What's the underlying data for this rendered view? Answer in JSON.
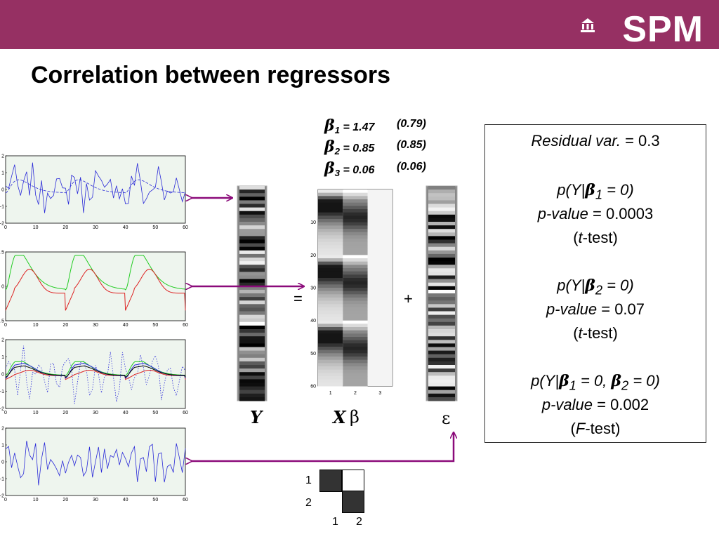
{
  "brand": {
    "logo_text": "SPM",
    "banner_color": "#963063"
  },
  "slide": {
    "title": "Correlation between regressors"
  },
  "betas": [
    {
      "sub": "1",
      "value": "= 1.47",
      "se": "(0.79)"
    },
    {
      "sub": "2",
      "value": "= 0.85",
      "se": "(0.85)"
    },
    {
      "sub": "3",
      "value": "= 0.06",
      "se": "(0.06)"
    }
  ],
  "equation": {
    "y_label": "Y",
    "x_label": "X",
    "beta_label": "β",
    "error_label": "ε",
    "equals": "=",
    "plus": "+"
  },
  "results": {
    "residual_label": "Residual var.",
    "residual_value": "= 0.3",
    "test1": {
      "hyp_pre": "p(Y|",
      "hyp_sub": "1",
      "hyp_post": " = 0)",
      "pvalue_label": "p-value",
      "pvalue": " = 0.0003",
      "test_open": "(",
      "test_letter": "t",
      "test_rest": "-test)"
    },
    "test2": {
      "hyp_pre": "p(Y|",
      "hyp_sub": "2",
      "hyp_post": " = 0)",
      "pvalue_label": "p-value",
      "pvalue": " = 0.07",
      "test_open": "(",
      "test_letter": "t",
      "test_rest": "-test)"
    },
    "test3": {
      "hyp_pre": "p(Y|",
      "hyp_sub1": "1",
      "hyp_mid": " = 0, ",
      "hyp_sub2": "2",
      "hyp_post": " = 0)",
      "pvalue_label": "p-value",
      "pvalue": " =  0.002",
      "test_open": "(",
      "test_letter": "F",
      "test_rest": "-test)"
    }
  },
  "plots": {
    "plot1_yticks": [
      "2",
      "1",
      "0",
      "-1",
      "-2"
    ],
    "plot2_yticks": [
      "0.5",
      "0",
      "-0.5"
    ],
    "plot3_yticks": [
      "2",
      "1",
      "0",
      "-1",
      "-2"
    ],
    "plot4_yticks": [
      "2",
      "1",
      "0",
      "-1",
      "-2"
    ],
    "xticks": [
      "0",
      "10",
      "20",
      "30",
      "40",
      "50",
      "60"
    ],
    "colors": {
      "blue": "#2a2ad8",
      "green": "#22cc22",
      "red": "#dd2222",
      "arrow": "#8b0a7a",
      "bg": "#eef5ee"
    }
  },
  "design_matrix": {
    "yticks": [
      "10",
      "20",
      "30",
      "40",
      "50",
      "60"
    ],
    "xticks": [
      "1",
      "2",
      "3"
    ]
  },
  "correlation": {
    "row_labels": [
      "1",
      "2"
    ],
    "col_labels": [
      "1",
      "2"
    ]
  }
}
